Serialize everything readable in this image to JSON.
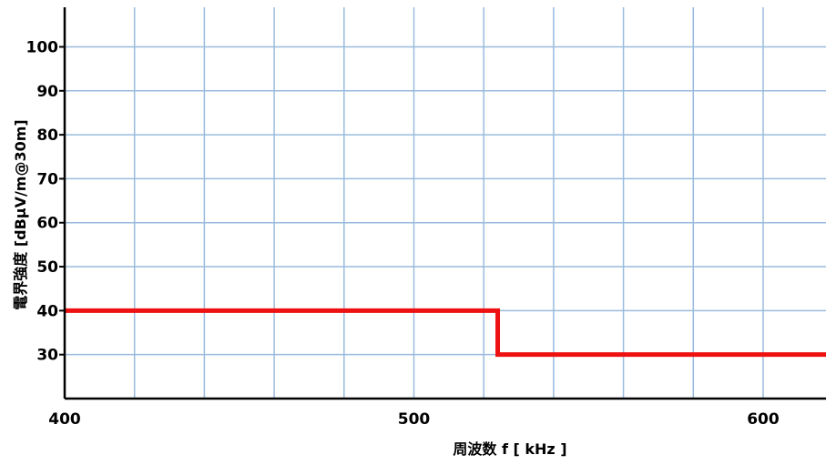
{
  "chart_data": {
    "type": "line",
    "title": "",
    "xlabel": "周波数 f [ kHz ]",
    "ylabel": "電界強度 [dBμV/m@30m]",
    "xlim": [
      400,
      618
    ],
    "ylim": [
      20,
      109
    ],
    "x_major_ticks": [
      400,
      500,
      600
    ],
    "x_grid_step": 20,
    "y_ticks": [
      30,
      40,
      50,
      60,
      70,
      80,
      90,
      100
    ],
    "y_tick_labels": [
      "30",
      "40",
      "50",
      "60",
      "70",
      "80",
      "90",
      "100"
    ],
    "x_tick_labels": [
      "400",
      "500",
      "600"
    ],
    "grid": true,
    "grid_color": "#99bbdd",
    "series": [
      {
        "color": "#ee1111",
        "points": [
          [
            400,
            40
          ],
          [
            524,
            40
          ],
          [
            524,
            30
          ],
          [
            618,
            30
          ]
        ]
      }
    ]
  }
}
